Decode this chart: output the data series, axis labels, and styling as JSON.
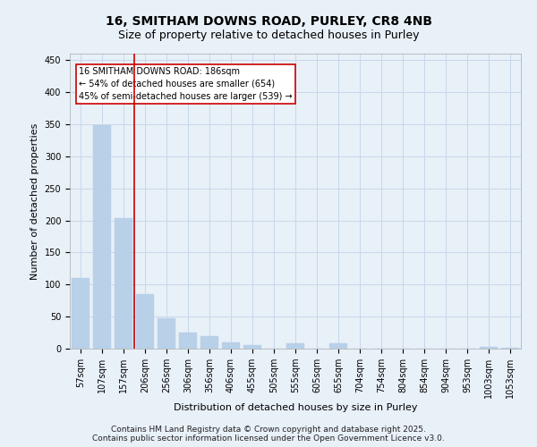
{
  "title_line1": "16, SMITHAM DOWNS ROAD, PURLEY, CR8 4NB",
  "title_line2": "Size of property relative to detached houses in Purley",
  "xlabel": "Distribution of detached houses by size in Purley",
  "ylabel": "Number of detached properties",
  "categories": [
    "57sqm",
    "107sqm",
    "157sqm",
    "206sqm",
    "256sqm",
    "306sqm",
    "356sqm",
    "406sqm",
    "455sqm",
    "505sqm",
    "555sqm",
    "605sqm",
    "655sqm",
    "704sqm",
    "754sqm",
    "804sqm",
    "854sqm",
    "904sqm",
    "953sqm",
    "1003sqm",
    "1053sqm"
  ],
  "values": [
    110,
    348,
    203,
    85,
    47,
    25,
    20,
    10,
    6,
    0,
    8,
    0,
    8,
    0,
    0,
    0,
    0,
    0,
    0,
    3,
    2
  ],
  "bar_color": "#b8d0e8",
  "bar_edge_color": "#b8d0e8",
  "grid_color": "#c8d8ea",
  "bg_color": "#e8f0f8",
  "vline_x": 2.5,
  "vline_color": "#cc0000",
  "annotation_box_text": "16 SMITHAM DOWNS ROAD: 186sqm\n← 54% of detached houses are smaller (654)\n45% of semi-detached houses are larger (539) →",
  "annotation_box_color": "#cc0000",
  "annotation_text_color": "#000000",
  "ylim": [
    0,
    460
  ],
  "yticks": [
    0,
    50,
    100,
    150,
    200,
    250,
    300,
    350,
    400,
    450
  ],
  "footer_line1": "Contains HM Land Registry data © Crown copyright and database right 2025.",
  "footer_line2": "Contains public sector information licensed under the Open Government Licence v3.0.",
  "title_fontsize": 10,
  "subtitle_fontsize": 9,
  "tick_fontsize": 7,
  "label_fontsize": 8,
  "footer_fontsize": 6.5,
  "annot_fontsize": 7
}
